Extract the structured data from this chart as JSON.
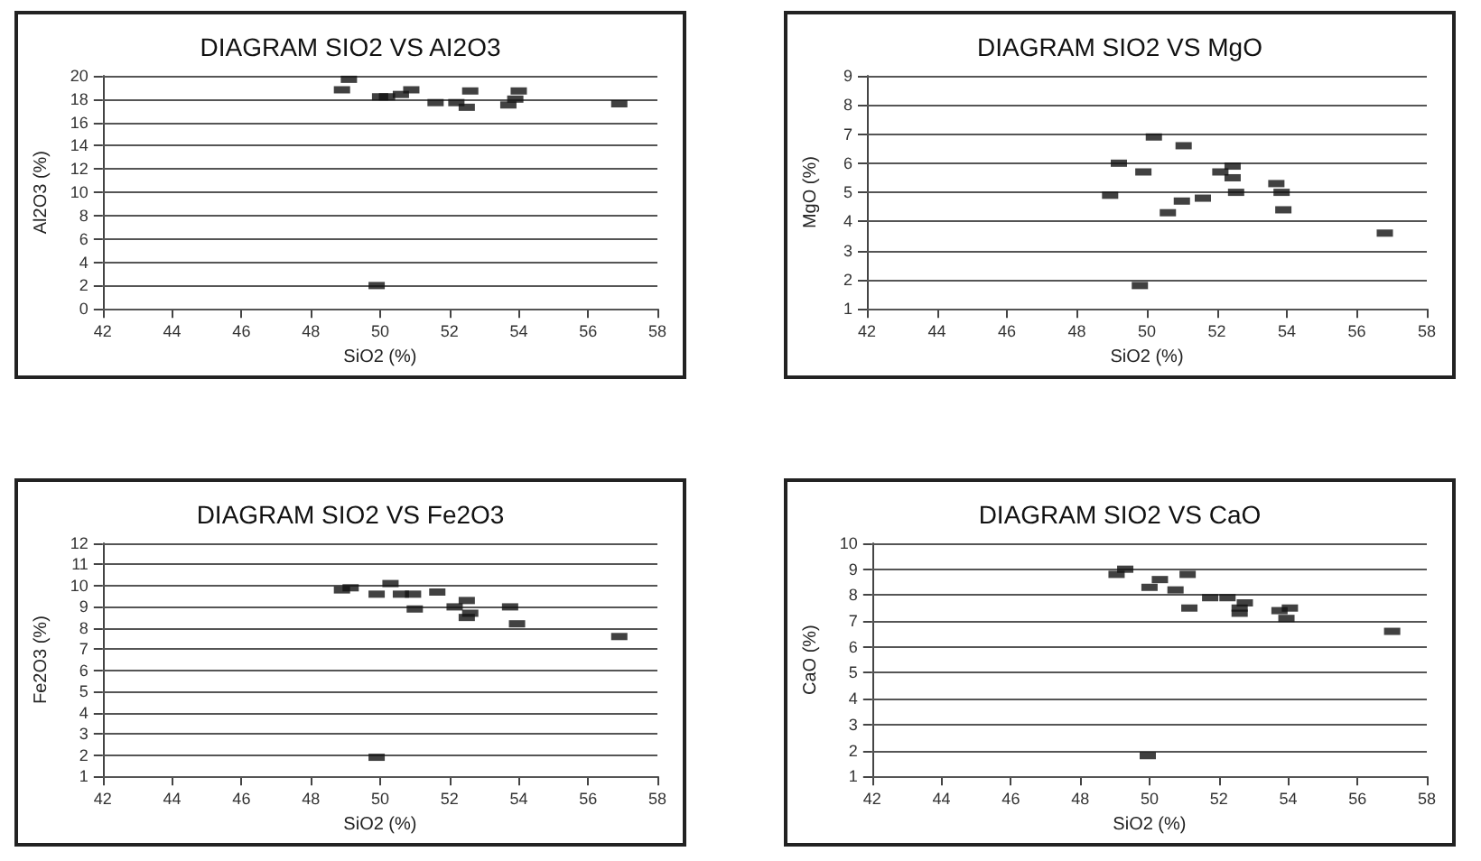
{
  "chart_data": [
    {
      "type": "scatter",
      "title": "DIAGRAM SIO2 VS AI2O3",
      "xlabel": "SiO2 (%)",
      "ylabel": "Al2O3 (%)",
      "xlim": [
        42,
        58
      ],
      "xticks": [
        42,
        44,
        46,
        48,
        50,
        52,
        54,
        56,
        58
      ],
      "ylim": [
        0,
        20
      ],
      "yticks": [
        0,
        2,
        4,
        6,
        8,
        10,
        12,
        14,
        16,
        18,
        20
      ],
      "grid": "y",
      "marker": "square",
      "series": [
        {
          "color": "#111111",
          "x": [
            48.9,
            49.1,
            50.0,
            50.2,
            50.6,
            50.9,
            51.6,
            52.2,
            52.5,
            52.6,
            53.7,
            53.9,
            54.0,
            56.9,
            49.9
          ],
          "values": [
            18.8,
            19.7,
            18.2,
            18.2,
            18.4,
            18.8,
            17.7,
            17.7,
            17.3,
            18.7,
            17.5,
            18.0,
            18.7,
            17.6,
            2.0
          ]
        }
      ]
    },
    {
      "type": "scatter",
      "title": "DIAGRAM SIO2 VS MgO",
      "xlabel": "SiO2 (%)",
      "ylabel": "MgO (%)",
      "xlim": [
        42,
        58
      ],
      "xticks": [
        42,
        44,
        46,
        48,
        50,
        52,
        54,
        56,
        58
      ],
      "ylim": [
        1,
        9
      ],
      "yticks": [
        1,
        2,
        3,
        4,
        5,
        6,
        7,
        8,
        9
      ],
      "grid": "y",
      "marker": "square",
      "series": [
        {
          "color": "#111111",
          "x": [
            48.95,
            49.2,
            49.9,
            50.2,
            50.6,
            51.0,
            51.05,
            51.6,
            52.1,
            52.45,
            52.45,
            52.55,
            53.7,
            53.85,
            53.9,
            56.8,
            49.8
          ],
          "values": [
            4.9,
            6.0,
            5.7,
            6.9,
            4.3,
            4.7,
            6.6,
            4.8,
            5.7,
            5.9,
            5.5,
            5.0,
            5.3,
            5.0,
            4.4,
            3.6,
            1.8
          ]
        }
      ]
    },
    {
      "type": "scatter",
      "title": "DIAGRAM SIO2 VS Fe2O3",
      "xlabel": "SiO2 (%)",
      "ylabel": "Fe2O3 (%)",
      "xlim": [
        42,
        58
      ],
      "xticks": [
        42,
        44,
        46,
        48,
        50,
        52,
        54,
        56,
        58
      ],
      "ylim": [
        1,
        12
      ],
      "yticks": [
        1,
        2,
        3,
        4,
        5,
        6,
        7,
        8,
        9,
        10,
        11,
        12
      ],
      "grid": "y",
      "marker": "square",
      "series": [
        {
          "color": "#111111",
          "x": [
            48.9,
            49.15,
            49.9,
            50.3,
            50.6,
            50.95,
            51.0,
            51.65,
            52.15,
            52.5,
            52.6,
            52.5,
            53.75,
            53.95,
            56.9,
            49.9
          ],
          "values": [
            9.8,
            9.9,
            9.6,
            10.1,
            9.6,
            9.6,
            8.9,
            9.7,
            9.0,
            9.3,
            8.7,
            8.5,
            9.0,
            8.2,
            7.6,
            1.9
          ]
        }
      ]
    },
    {
      "type": "scatter",
      "title": "DIAGRAM SIO2 VS CaO",
      "xlabel": "SiO2 (%)",
      "ylabel": "CaO (%)",
      "xlim": [
        42,
        58
      ],
      "xticks": [
        42,
        44,
        46,
        48,
        50,
        52,
        54,
        56,
        58
      ],
      "ylim": [
        1,
        10
      ],
      "yticks": [
        1,
        2,
        3,
        4,
        5,
        6,
        7,
        8,
        9,
        10
      ],
      "grid": "y",
      "marker": "square",
      "series": [
        {
          "color": "#111111",
          "x": [
            49.05,
            49.3,
            50.0,
            50.3,
            50.75,
            51.1,
            51.15,
            51.75,
            52.25,
            52.6,
            52.6,
            52.75,
            53.75,
            54.05,
            53.95,
            57.0,
            49.95
          ],
          "values": [
            8.8,
            9.0,
            8.3,
            8.6,
            8.2,
            8.8,
            7.5,
            7.9,
            7.9,
            7.3,
            7.5,
            7.7,
            7.4,
            7.5,
            7.1,
            6.6,
            1.8
          ]
        }
      ]
    }
  ]
}
